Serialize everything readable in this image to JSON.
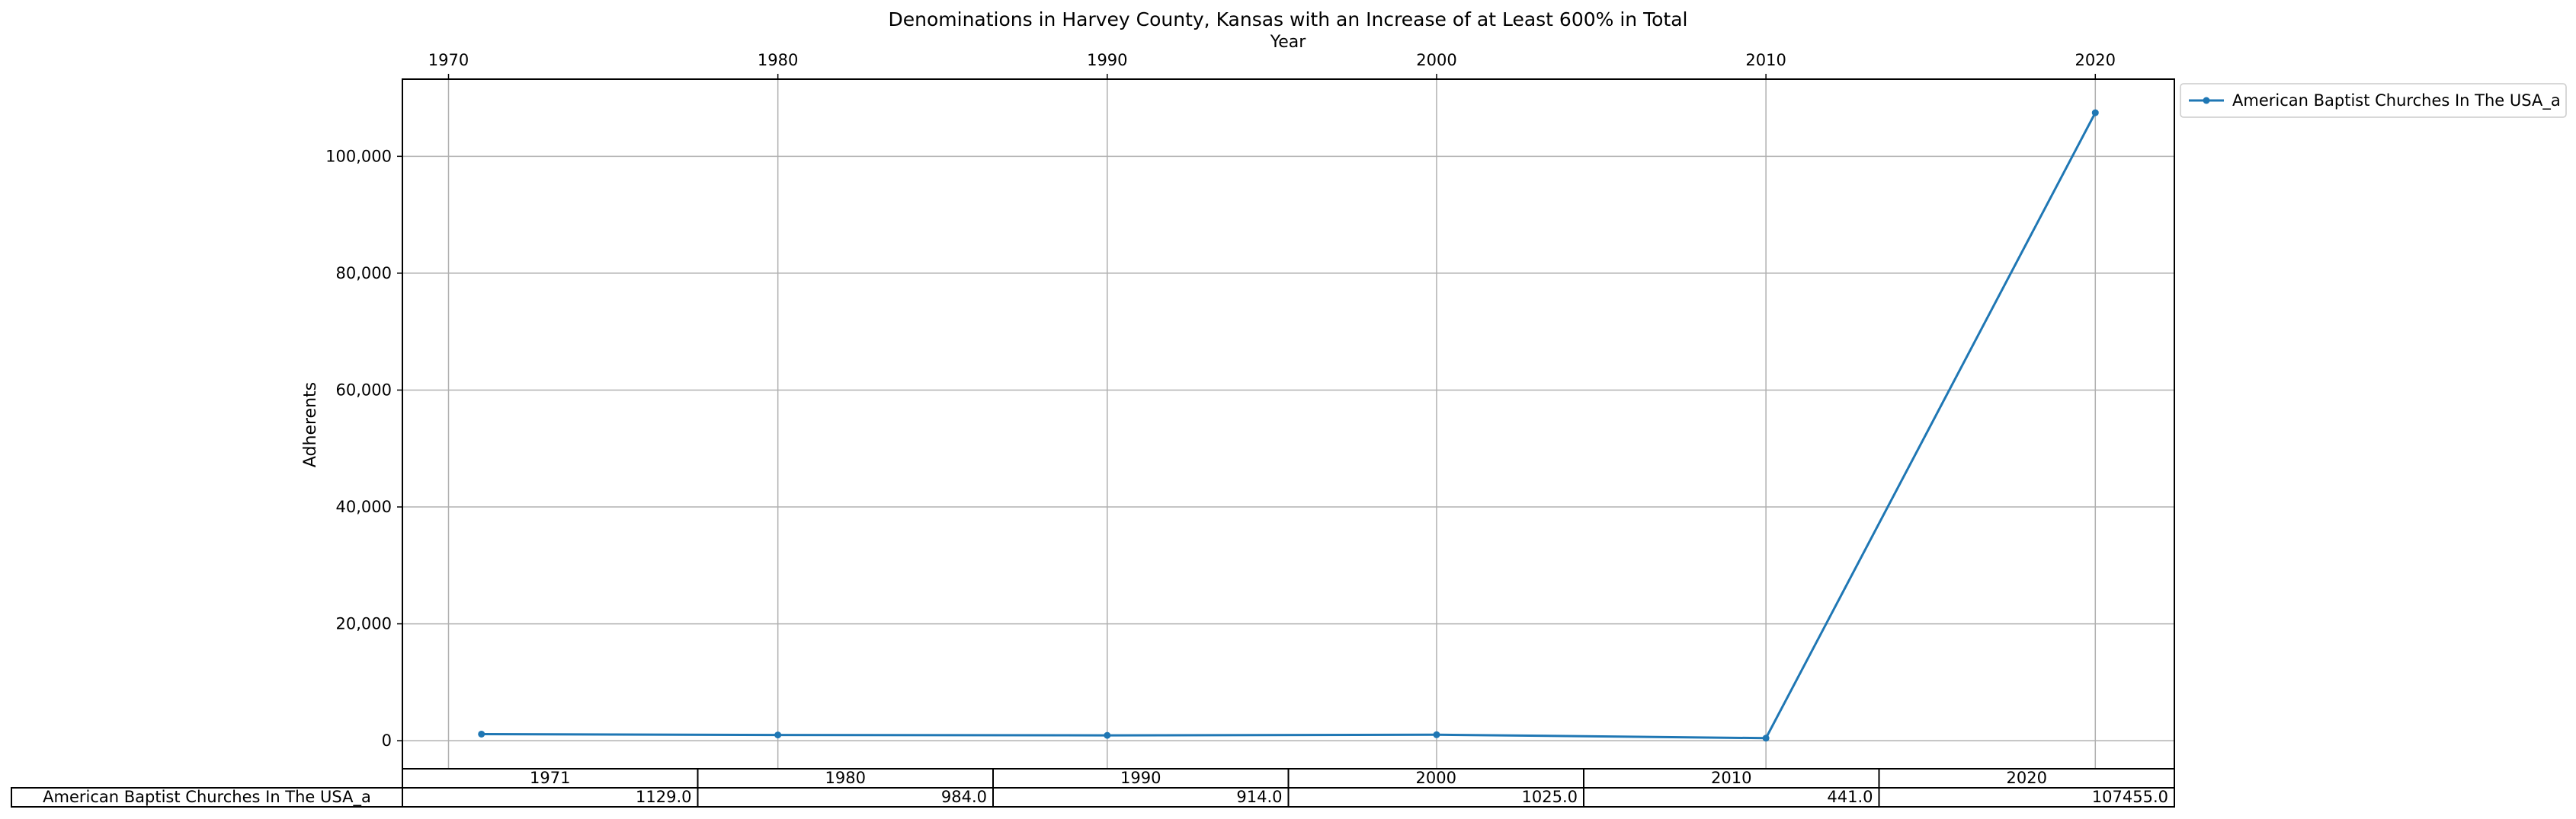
{
  "chart_data": {
    "type": "line",
    "title": "Denominations in Harvey County, Kansas with an Increase of at Least 600% in Total",
    "xlabel": "Year",
    "ylabel": "Adherents",
    "x_ticks": [
      1970,
      1980,
      1990,
      2000,
      2010,
      2020
    ],
    "y_ticks": [
      0,
      20000,
      40000,
      60000,
      80000,
      100000
    ],
    "y_tick_labels": [
      "0",
      "20,000",
      "40,000",
      "60,000",
      "80,000",
      "100,000"
    ],
    "xlim": [
      1968.6,
      2022.4
    ],
    "ylim": [
      -4800,
      113200
    ],
    "grid": true,
    "legend_position": "upper right, outside plot",
    "x_axis_position": "top",
    "series": [
      {
        "name": "American Baptist Churches In The USA_a",
        "color": "#1f77b4",
        "marker": "point",
        "x": [
          1971,
          1980,
          1990,
          2000,
          2010,
          2020
        ],
        "y": [
          1129,
          984,
          914,
          1025,
          441,
          107455
        ]
      }
    ],
    "table": {
      "columns": [
        "1971",
        "1980",
        "1990",
        "2000",
        "2010",
        "2020"
      ],
      "rows": [
        {
          "label": "American Baptist Churches In The USA_a",
          "cells": [
            "1129.0",
            "984.0",
            "914.0",
            "1025.0",
            "441.0",
            "107455.0"
          ]
        }
      ]
    }
  }
}
